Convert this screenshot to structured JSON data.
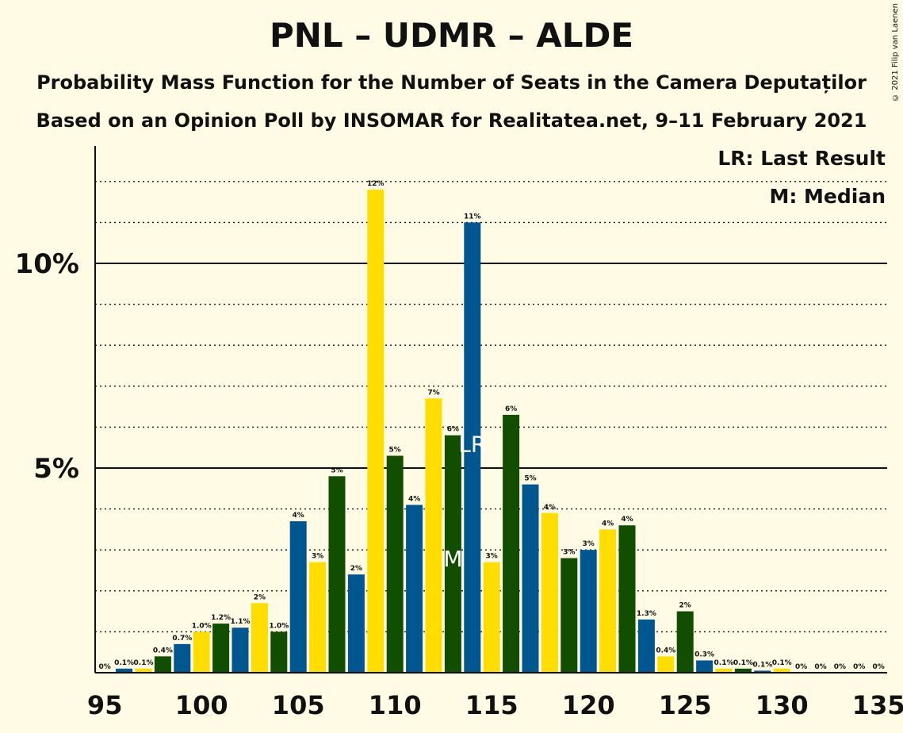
{
  "title": "PNL – UDMR – ALDE",
  "subtitle": "Probability Mass Function for the Number of Seats in the Camera Deputaților",
  "subtitle2": "Based on an Opinion Poll by INSOMAR for Realitatea.net, 9–11 February 2021",
  "copyright": "© 2021 Filip van Laenen",
  "legend": {
    "lr": "LR: Last Result",
    "median": "M: Median"
  },
  "colors": {
    "background": "#FFFBE5",
    "green": "#124E00",
    "blue": "#00568F",
    "yellow": "#FFDD00"
  },
  "chart_data": {
    "type": "bar",
    "x": [
      95,
      96,
      97,
      98,
      99,
      100,
      101,
      102,
      103,
      104,
      105,
      106,
      107,
      108,
      109,
      110,
      111,
      112,
      113,
      114,
      115,
      116,
      117,
      118,
      119,
      120,
      121,
      122,
      123,
      124,
      125,
      126,
      127,
      128,
      129,
      130,
      131,
      132,
      133,
      134,
      135
    ],
    "values": [
      0,
      0.1,
      0.1,
      0.4,
      0.7,
      1.0,
      1.2,
      1.1,
      1.7,
      1.0,
      3.7,
      2.7,
      4.8,
      2.4,
      11.8,
      5.3,
      4.1,
      6.7,
      5.8,
      11.0,
      2.7,
      6.3,
      4.6,
      3.9,
      2.8,
      3.0,
      3.5,
      3.6,
      1.3,
      0.4,
      1.5,
      0.3,
      0.1,
      0.1,
      0.05,
      0.1,
      0,
      0,
      0,
      0,
      0
    ],
    "labels": [
      "0%",
      "0.1%",
      "0.1%",
      "0.4%",
      "0.7%",
      "1.0%",
      "1.2%",
      "1.1%",
      "2%",
      "1.0%",
      "4%",
      "3%",
      "5%",
      "2%",
      "12%",
      "5%",
      "4%",
      "7%",
      "6%",
      "11%",
      "3%",
      "6%",
      "5%",
      "4%",
      "3%",
      "3%",
      "4%",
      "4%",
      "1.3%",
      "0.4%",
      "2%",
      "0.3%",
      "0.1%",
      "0.1%",
      "0.1%",
      "0.1%",
      "0%",
      "0%",
      "0%",
      "0%",
      "0%"
    ],
    "x_ticks": [
      95,
      100,
      105,
      110,
      115,
      120,
      125,
      130,
      135
    ],
    "y_ticks": [
      5,
      10
    ],
    "y_tick_labels": [
      "5%",
      "10%"
    ],
    "ylim": [
      0,
      12.8
    ],
    "xlim": [
      95,
      135
    ],
    "last_result": 114,
    "last_result_marker": "LR",
    "median": 113,
    "median_marker": "M",
    "grid": "dotted every 1%, solid at 5% and 10%"
  }
}
